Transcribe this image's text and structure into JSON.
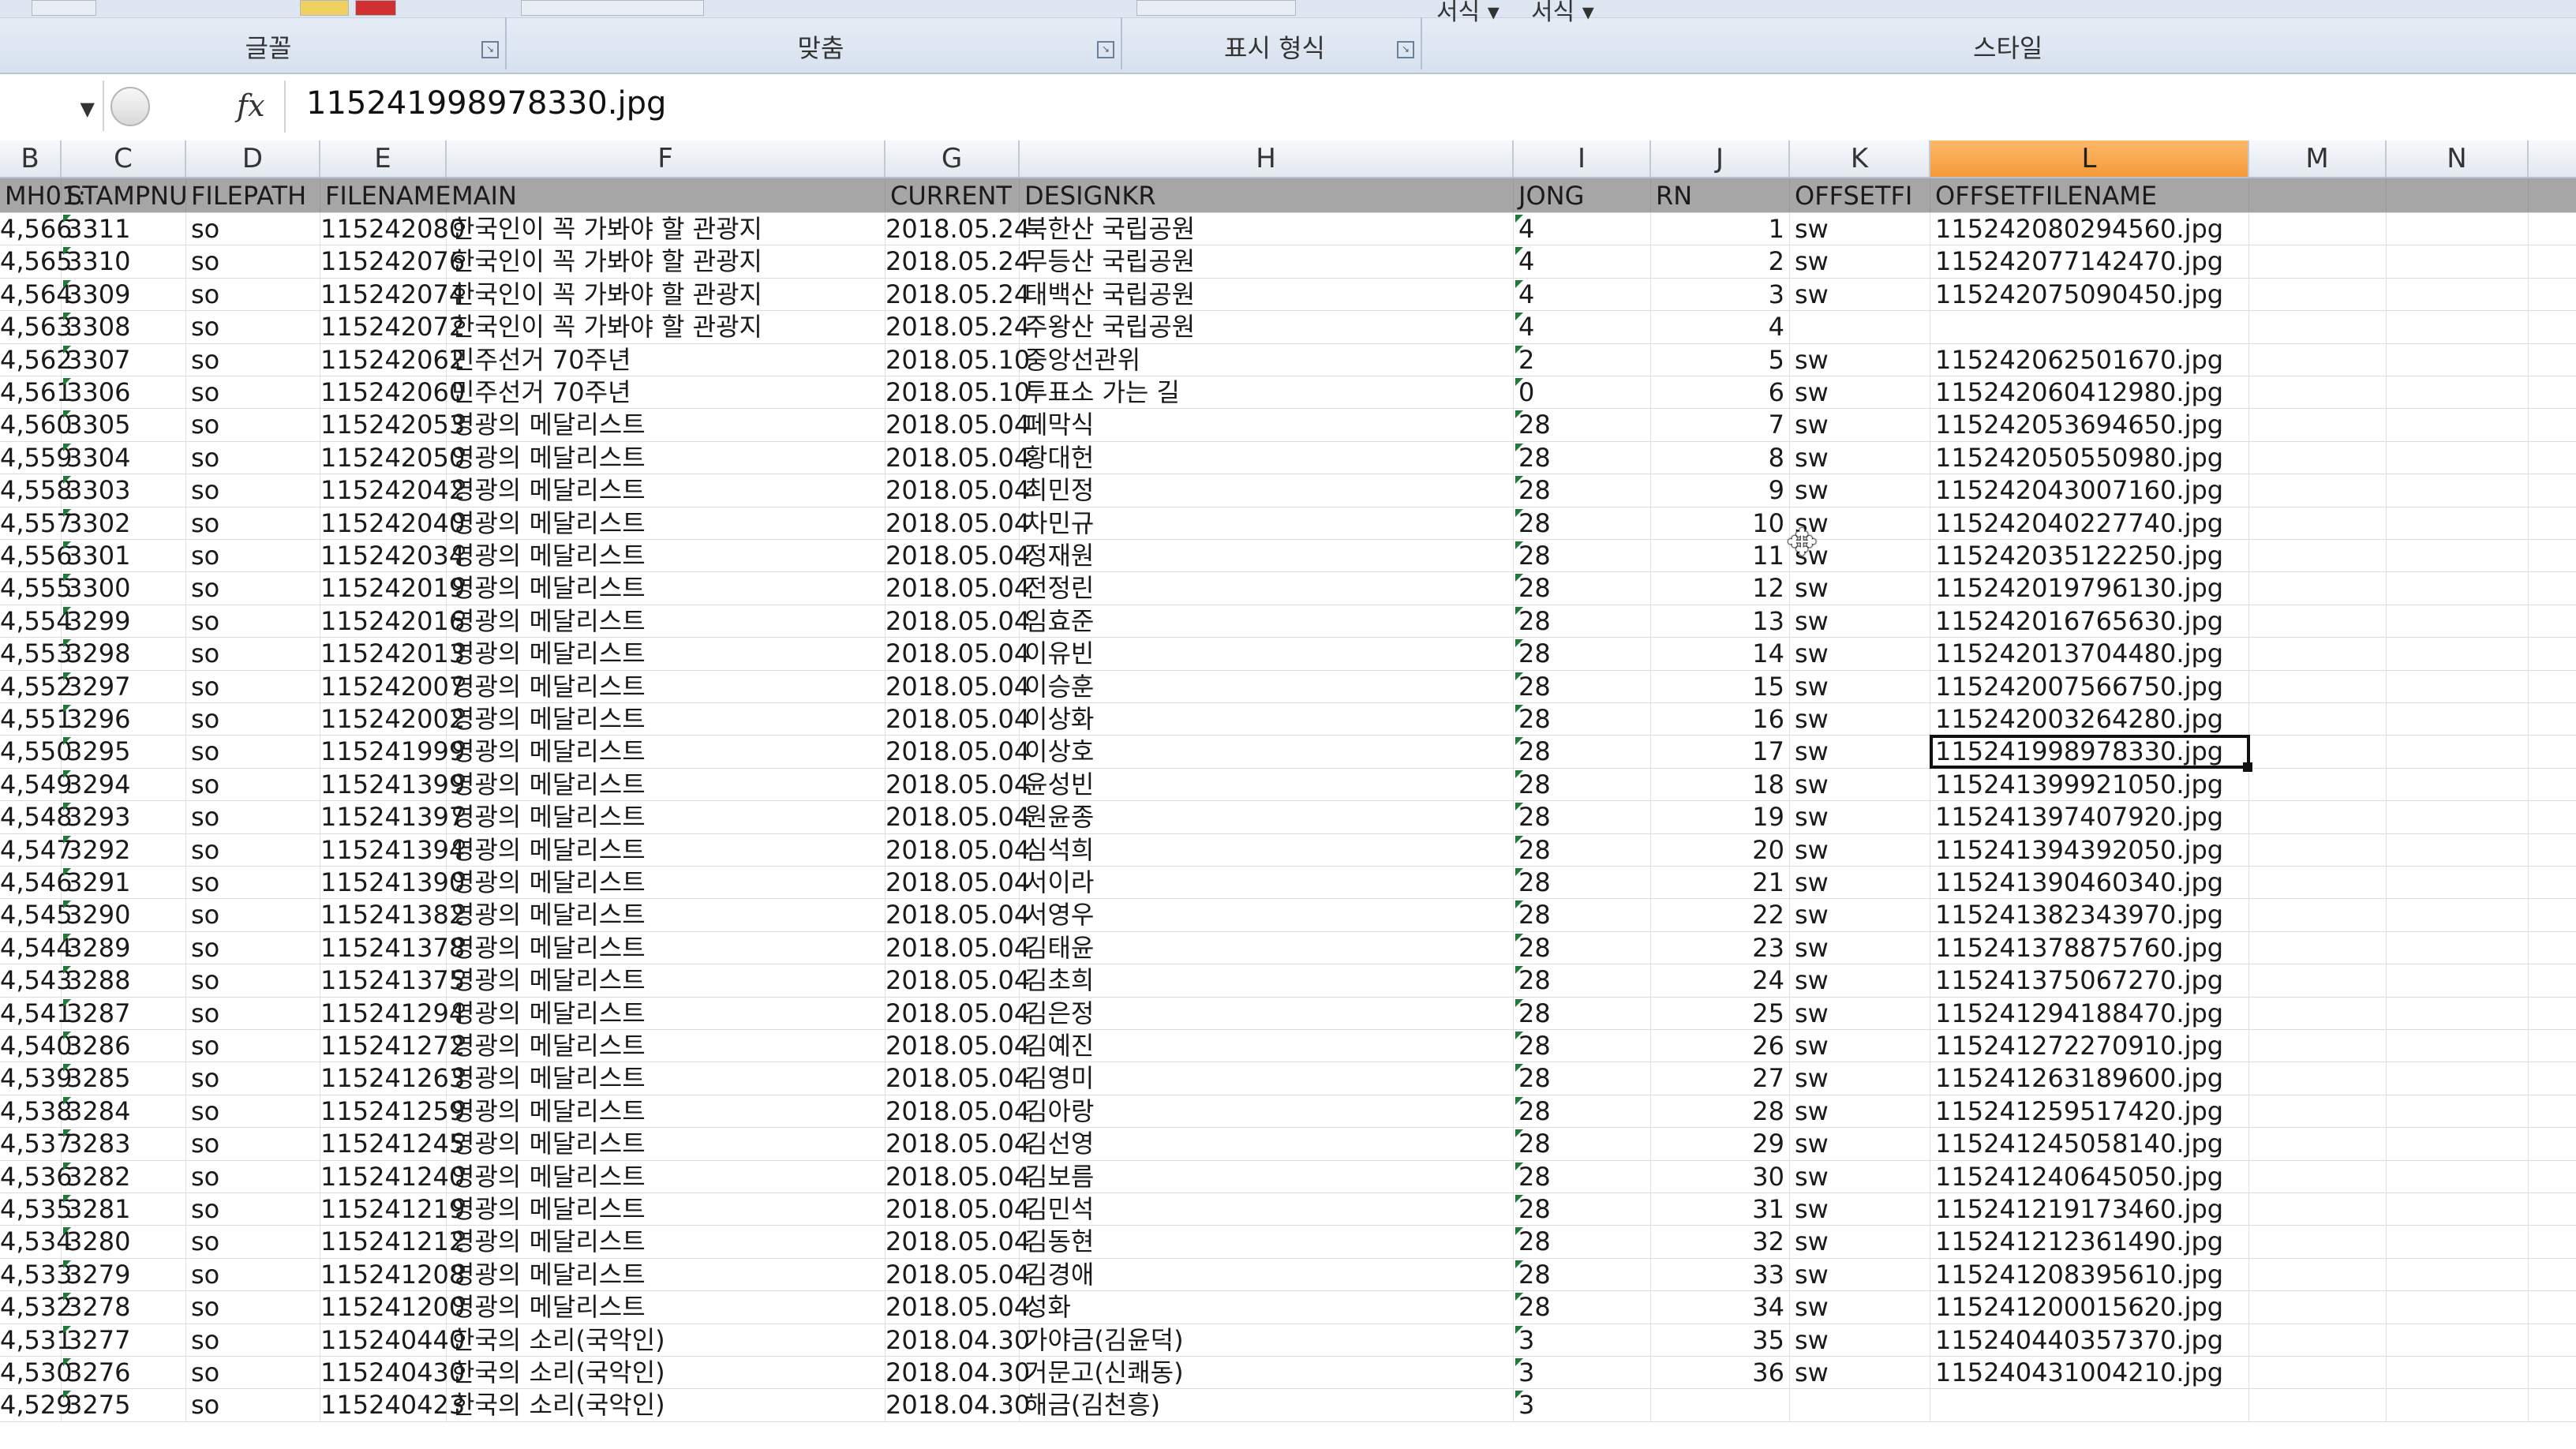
{
  "ribbon": {
    "groups": [
      {
        "label": "글꼴"
      },
      {
        "label": "맞춤"
      },
      {
        "label": "표시 형식"
      },
      {
        "label": "스타일"
      }
    ],
    "top_items": [
      "서식 ▾",
      "서식 ▾"
    ]
  },
  "formula_bar": {
    "fx": "fx",
    "value": "115241998978330.jpg"
  },
  "columns": [
    "B",
    "C",
    "D",
    "E",
    "F",
    "G",
    "H",
    "I",
    "J",
    "K",
    "L",
    "M",
    "N"
  ],
  "header_row": {
    "B": "MH01:",
    "C": "STAMPNU",
    "D": "FILEPATH",
    "E": "FILENAME",
    "F": "MAIN",
    "G": "CURRENT",
    "H": "DESIGNKR",
    "I": "JONG",
    "J": "RN",
    "K": "OFFSETFI",
    "L": "OFFSETFILENAME"
  },
  "rows": [
    {
      "b": "4,566",
      "c": "3311",
      "d": "so",
      "e": "115242080",
      "f": "한국인이 꼭 가봐야 할 관광지",
      "g": "2018.05.24",
      "h": "북한산 국립공원",
      "i": "4",
      "j": "1",
      "k": "sw",
      "l": "115242080294560.jpg"
    },
    {
      "b": "4,565",
      "c": "3310",
      "d": "so",
      "e": "115242076",
      "f": "한국인이 꼭 가봐야 할 관광지",
      "g": "2018.05.24",
      "h": "무등산 국립공원",
      "i": "4",
      "j": "2",
      "k": "sw",
      "l": "115242077142470.jpg"
    },
    {
      "b": "4,564",
      "c": "3309",
      "d": "so",
      "e": "115242074",
      "f": "한국인이 꼭 가봐야 할 관광지",
      "g": "2018.05.24",
      "h": "태백산 국립공원",
      "i": "4",
      "j": "3",
      "k": "sw",
      "l": "115242075090450.jpg"
    },
    {
      "b": "4,563",
      "c": "3308",
      "d": "so",
      "e": "115242072",
      "f": "한국인이 꼭 가봐야 할 관광지",
      "g": "2018.05.24",
      "h": "주왕산 국립공원",
      "i": "4",
      "j": "4",
      "k": "",
      "l": ""
    },
    {
      "b": "4,562",
      "c": "3307",
      "d": "so",
      "e": "115242062",
      "f": "민주선거 70주년",
      "g": "2018.05.10",
      "h": "중앙선관위",
      "i": "2",
      "j": "5",
      "k": "sw",
      "l": "115242062501670.jpg"
    },
    {
      "b": "4,561",
      "c": "3306",
      "d": "so",
      "e": "115242060",
      "f": "민주선거 70주년",
      "g": "2018.05.10",
      "h": "투표소 가는 길",
      "i": "0",
      "j": "6",
      "k": "sw",
      "l": "115242060412980.jpg"
    },
    {
      "b": "4,560",
      "c": "3305",
      "d": "so",
      "e": "115242053",
      "f": "영광의 메달리스트",
      "g": "2018.05.04",
      "h": "페막식",
      "i": "28",
      "j": "7",
      "k": "sw",
      "l": "115242053694650.jpg"
    },
    {
      "b": "4,559",
      "c": "3304",
      "d": "so",
      "e": "115242050",
      "f": "영광의 메달리스트",
      "g": "2018.05.04",
      "h": "황대헌",
      "i": "28",
      "j": "8",
      "k": "sw",
      "l": "115242050550980.jpg"
    },
    {
      "b": "4,558",
      "c": "3303",
      "d": "so",
      "e": "115242042",
      "f": "영광의 메달리스트",
      "g": "2018.05.04",
      "h": "최민정",
      "i": "28",
      "j": "9",
      "k": "sw",
      "l": "115242043007160.jpg"
    },
    {
      "b": "4,557",
      "c": "3302",
      "d": "so",
      "e": "115242040",
      "f": "영광의 메달리스트",
      "g": "2018.05.04",
      "h": "차민규",
      "i": "28",
      "j": "10",
      "k": "sw",
      "l": "115242040227740.jpg"
    },
    {
      "b": "4,556",
      "c": "3301",
      "d": "so",
      "e": "115242034",
      "f": "영광의 메달리스트",
      "g": "2018.05.04",
      "h": "정재원",
      "i": "28",
      "j": "11",
      "k": "sw",
      "l": "115242035122250.jpg"
    },
    {
      "b": "4,555",
      "c": "3300",
      "d": "so",
      "e": "115242019",
      "f": "영광의 메달리스트",
      "g": "2018.05.04",
      "h": "전정린",
      "i": "28",
      "j": "12",
      "k": "sw",
      "l": "115242019796130.jpg"
    },
    {
      "b": "4,554",
      "c": "3299",
      "d": "so",
      "e": "115242016",
      "f": "영광의 메달리스트",
      "g": "2018.05.04",
      "h": "임효준",
      "i": "28",
      "j": "13",
      "k": "sw",
      "l": "115242016765630.jpg"
    },
    {
      "b": "4,553",
      "c": "3298",
      "d": "so",
      "e": "115242013",
      "f": "영광의 메달리스트",
      "g": "2018.05.04",
      "h": "이유빈",
      "i": "28",
      "j": "14",
      "k": "sw",
      "l": "115242013704480.jpg"
    },
    {
      "b": "4,552",
      "c": "3297",
      "d": "so",
      "e": "115242007",
      "f": "영광의 메달리스트",
      "g": "2018.05.04",
      "h": "이승훈",
      "i": "28",
      "j": "15",
      "k": "sw",
      "l": "115242007566750.jpg"
    },
    {
      "b": "4,551",
      "c": "3296",
      "d": "so",
      "e": "115242002",
      "f": "영광의 메달리스트",
      "g": "2018.05.04",
      "h": "이상화",
      "i": "28",
      "j": "16",
      "k": "sw",
      "l": "115242003264280.jpg"
    },
    {
      "b": "4,550",
      "c": "3295",
      "d": "so",
      "e": "115241999",
      "f": "영광의 메달리스트",
      "g": "2018.05.04",
      "h": "이상호",
      "i": "28",
      "j": "17",
      "k": "sw",
      "l": "115241998978330.jpg"
    },
    {
      "b": "4,549",
      "c": "3294",
      "d": "so",
      "e": "115241399",
      "f": "영광의 메달리스트",
      "g": "2018.05.04",
      "h": "윤성빈",
      "i": "28",
      "j": "18",
      "k": "sw",
      "l": "115241399921050.jpg"
    },
    {
      "b": "4,548",
      "c": "3293",
      "d": "so",
      "e": "115241397",
      "f": "영광의 메달리스트",
      "g": "2018.05.04",
      "h": "원윤종",
      "i": "28",
      "j": "19",
      "k": "sw",
      "l": "115241397407920.jpg"
    },
    {
      "b": "4,547",
      "c": "3292",
      "d": "so",
      "e": "115241394",
      "f": "영광의 메달리스트",
      "g": "2018.05.04",
      "h": "심석희",
      "i": "28",
      "j": "20",
      "k": "sw",
      "l": "115241394392050.jpg"
    },
    {
      "b": "4,546",
      "c": "3291",
      "d": "so",
      "e": "115241390",
      "f": "영광의 메달리스트",
      "g": "2018.05.04",
      "h": "서이라",
      "i": "28",
      "j": "21",
      "k": "sw",
      "l": "115241390460340.jpg"
    },
    {
      "b": "4,545",
      "c": "3290",
      "d": "so",
      "e": "115241382",
      "f": "영광의 메달리스트",
      "g": "2018.05.04",
      "h": "서영우",
      "i": "28",
      "j": "22",
      "k": "sw",
      "l": "115241382343970.jpg"
    },
    {
      "b": "4,544",
      "c": "3289",
      "d": "so",
      "e": "115241378",
      "f": "영광의 메달리스트",
      "g": "2018.05.04",
      "h": "김태윤",
      "i": "28",
      "j": "23",
      "k": "sw",
      "l": "115241378875760.jpg"
    },
    {
      "b": "4,543",
      "c": "3288",
      "d": "so",
      "e": "115241375",
      "f": "영광의 메달리스트",
      "g": "2018.05.04",
      "h": "김초희",
      "i": "28",
      "j": "24",
      "k": "sw",
      "l": "115241375067270.jpg"
    },
    {
      "b": "4,541",
      "c": "3287",
      "d": "so",
      "e": "115241294",
      "f": "영광의 메달리스트",
      "g": "2018.05.04",
      "h": "김은정",
      "i": "28",
      "j": "25",
      "k": "sw",
      "l": "115241294188470.jpg"
    },
    {
      "b": "4,540",
      "c": "3286",
      "d": "so",
      "e": "115241272",
      "f": "영광의 메달리스트",
      "g": "2018.05.04",
      "h": "김예진",
      "i": "28",
      "j": "26",
      "k": "sw",
      "l": "115241272270910.jpg"
    },
    {
      "b": "4,539",
      "c": "3285",
      "d": "so",
      "e": "115241263",
      "f": "영광의 메달리스트",
      "g": "2018.05.04",
      "h": "김영미",
      "i": "28",
      "j": "27",
      "k": "sw",
      "l": "115241263189600.jpg"
    },
    {
      "b": "4,538",
      "c": "3284",
      "d": "so",
      "e": "115241259",
      "f": "영광의 메달리스트",
      "g": "2018.05.04",
      "h": "김아랑",
      "i": "28",
      "j": "28",
      "k": "sw",
      "l": "115241259517420.jpg"
    },
    {
      "b": "4,537",
      "c": "3283",
      "d": "so",
      "e": "115241245",
      "f": "영광의 메달리스트",
      "g": "2018.05.04",
      "h": "김선영",
      "i": "28",
      "j": "29",
      "k": "sw",
      "l": "115241245058140.jpg"
    },
    {
      "b": "4,536",
      "c": "3282",
      "d": "so",
      "e": "115241240",
      "f": "영광의 메달리스트",
      "g": "2018.05.04",
      "h": "김보름",
      "i": "28",
      "j": "30",
      "k": "sw",
      "l": "115241240645050.jpg"
    },
    {
      "b": "4,535",
      "c": "3281",
      "d": "so",
      "e": "115241219",
      "f": "영광의 메달리스트",
      "g": "2018.05.04",
      "h": "김민석",
      "i": "28",
      "j": "31",
      "k": "sw",
      "l": "115241219173460.jpg"
    },
    {
      "b": "4,534",
      "c": "3280",
      "d": "so",
      "e": "115241212",
      "f": "영광의 메달리스트",
      "g": "2018.05.04",
      "h": "김동현",
      "i": "28",
      "j": "32",
      "k": "sw",
      "l": "115241212361490.jpg"
    },
    {
      "b": "4,533",
      "c": "3279",
      "d": "so",
      "e": "115241208",
      "f": "영광의 메달리스트",
      "g": "2018.05.04",
      "h": "김경애",
      "i": "28",
      "j": "33",
      "k": "sw",
      "l": "115241208395610.jpg"
    },
    {
      "b": "4,532",
      "c": "3278",
      "d": "so",
      "e": "115241200",
      "f": "영광의 메달리스트",
      "g": "2018.05.04",
      "h": "성화",
      "i": "28",
      "j": "34",
      "k": "sw",
      "l": "115241200015620.jpg"
    },
    {
      "b": "4,531",
      "c": "3277",
      "d": "so",
      "e": "115240440",
      "f": "한국의 소리(국악인)",
      "g": "2018.04.30",
      "h": "가야금(김윤덕)",
      "i": "3",
      "j": "35",
      "k": "sw",
      "l": "115240440357370.jpg"
    },
    {
      "b": "4,530",
      "c": "3276",
      "d": "so",
      "e": "115240430",
      "f": "한국의 소리(국악인)",
      "g": "2018.04.30",
      "h": "거문고(신쾌동)",
      "i": "3",
      "j": "36",
      "k": "sw",
      "l": "115240431004210.jpg"
    },
    {
      "b": "4,529",
      "c": "3275",
      "d": "so",
      "e": "115240423",
      "f": "한국의 소리(국악인)",
      "g": "2018.04.30",
      "h": "해금(김천흥)",
      "i": "3",
      "j": "",
      "k": "",
      "l": ""
    }
  ],
  "selected_cell_value": "115241998978330.jpg"
}
